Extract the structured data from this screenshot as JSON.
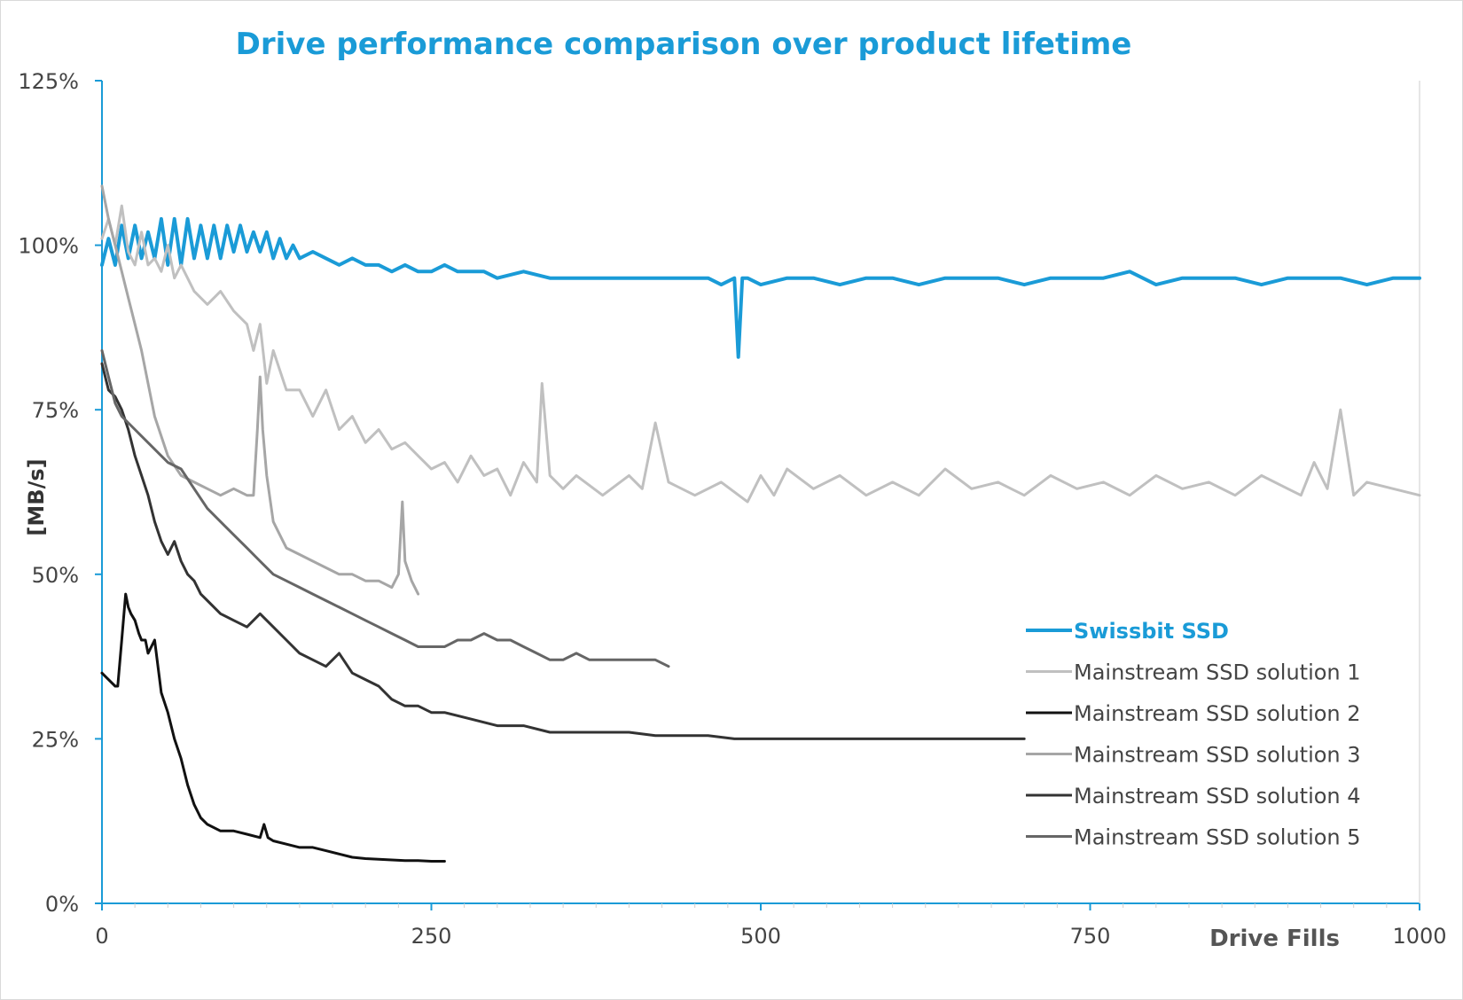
{
  "chart_data": {
    "type": "line",
    "title": "Drive performance comparison over product lifetime",
    "xlabel": "Drive Fills",
    "ylabel": "[MB/s]",
    "xlim": [
      0,
      1000
    ],
    "ylim": [
      0,
      125
    ],
    "x_ticks": [
      "0",
      "250",
      "500",
      "750",
      "1000"
    ],
    "x_tick_values": [
      0,
      250,
      500,
      750,
      1000
    ],
    "y_ticks": [
      "0%",
      "25%",
      "50%",
      "75%",
      "100%",
      "125%"
    ],
    "y_tick_values": [
      0,
      25,
      50,
      75,
      100,
      125
    ],
    "grid": false,
    "legend_position": "right",
    "series": [
      {
        "name": "Swissbit SSD",
        "color": "#1a9bd7",
        "x": [
          0,
          5,
          10,
          15,
          20,
          25,
          30,
          35,
          40,
          45,
          50,
          55,
          60,
          65,
          70,
          75,
          80,
          85,
          90,
          95,
          100,
          105,
          110,
          115,
          120,
          125,
          130,
          135,
          140,
          145,
          150,
          160,
          170,
          180,
          190,
          200,
          210,
          220,
          230,
          240,
          250,
          260,
          270,
          280,
          290,
          300,
          320,
          340,
          360,
          380,
          400,
          420,
          440,
          460,
          470,
          480,
          483,
          486,
          490,
          500,
          520,
          540,
          560,
          580,
          600,
          620,
          640,
          660,
          680,
          700,
          720,
          740,
          760,
          780,
          800,
          820,
          840,
          860,
          880,
          900,
          920,
          940,
          960,
          980,
          1000
        ],
        "values": [
          97,
          101,
          97,
          103,
          98,
          103,
          98,
          102,
          98,
          104,
          97,
          104,
          97,
          104,
          98,
          103,
          98,
          103,
          98,
          103,
          99,
          103,
          99,
          102,
          99,
          102,
          98,
          101,
          98,
          100,
          98,
          99,
          98,
          97,
          98,
          97,
          97,
          96,
          97,
          96,
          96,
          97,
          96,
          96,
          96,
          95,
          96,
          95,
          95,
          95,
          95,
          95,
          95,
          95,
          94,
          95,
          83,
          95,
          95,
          94,
          95,
          95,
          94,
          95,
          95,
          94,
          95,
          95,
          95,
          94,
          95,
          95,
          95,
          96,
          94,
          95,
          95,
          95,
          94,
          95,
          95,
          95,
          94,
          95,
          95
        ]
      },
      {
        "name": "Mainstream SSD solution 1",
        "color": "#c0c0c0",
        "x": [
          0,
          5,
          10,
          15,
          20,
          25,
          30,
          35,
          40,
          45,
          50,
          55,
          60,
          70,
          80,
          90,
          100,
          110,
          115,
          120,
          125,
          130,
          140,
          150,
          160,
          170,
          180,
          190,
          200,
          210,
          220,
          230,
          240,
          250,
          260,
          270,
          280,
          290,
          300,
          310,
          320,
          330,
          334,
          340,
          350,
          360,
          380,
          400,
          410,
          420,
          430,
          450,
          470,
          490,
          500,
          510,
          520,
          540,
          560,
          580,
          600,
          620,
          640,
          660,
          680,
          700,
          720,
          740,
          760,
          780,
          800,
          820,
          840,
          860,
          880,
          900,
          910,
          920,
          930,
          940,
          950,
          960,
          980,
          1000
        ],
        "values": [
          101,
          104,
          100,
          106,
          99,
          97,
          102,
          97,
          98,
          96,
          100,
          95,
          97,
          93,
          91,
          93,
          90,
          88,
          84,
          88,
          79,
          84,
          78,
          78,
          74,
          78,
          72,
          74,
          70,
          72,
          69,
          70,
          68,
          66,
          67,
          64,
          68,
          65,
          66,
          62,
          67,
          64,
          79,
          65,
          63,
          65,
          62,
          65,
          63,
          73,
          64,
          62,
          64,
          61,
          65,
          62,
          66,
          63,
          65,
          62,
          64,
          62,
          66,
          63,
          64,
          62,
          65,
          63,
          64,
          62,
          65,
          63,
          64,
          62,
          65,
          63,
          62,
          67,
          63,
          75,
          62,
          64,
          63,
          62
        ]
      },
      {
        "name": "Mainstream SSD solution 2",
        "color": "#111111",
        "x": [
          0,
          5,
          10,
          12,
          15,
          18,
          20,
          22,
          25,
          28,
          30,
          33,
          35,
          40,
          45,
          50,
          55,
          60,
          65,
          70,
          75,
          80,
          90,
          100,
          110,
          120,
          123,
          126,
          130,
          140,
          150,
          160,
          170,
          180,
          190,
          200,
          210,
          220,
          230,
          240,
          250,
          260
        ],
        "values": [
          35,
          34,
          33,
          33,
          40,
          47,
          45,
          44,
          43,
          41,
          40,
          40,
          38,
          40,
          32,
          29,
          25,
          22,
          18,
          15,
          13,
          12,
          11,
          11,
          10.5,
          10,
          12,
          10,
          9.5,
          9,
          8.5,
          8.5,
          8,
          7.5,
          7,
          6.8,
          6.7,
          6.6,
          6.5,
          6.5,
          6.4,
          6.4
        ]
      },
      {
        "name": "Mainstream SSD solution 3",
        "color": "#a6a6a6",
        "x": [
          0,
          5,
          10,
          15,
          20,
          25,
          30,
          35,
          40,
          50,
          60,
          70,
          80,
          90,
          100,
          110,
          115,
          118,
          120,
          122,
          125,
          130,
          135,
          140,
          150,
          160,
          170,
          180,
          190,
          200,
          210,
          220,
          225,
          228,
          230,
          235,
          240
        ],
        "values": [
          109,
          104,
          100,
          96,
          92,
          88,
          84,
          79,
          74,
          68,
          65,
          64,
          63,
          62,
          63,
          62,
          62,
          72,
          80,
          72,
          65,
          58,
          56,
          54,
          53,
          52,
          51,
          50,
          50,
          49,
          49,
          48,
          50,
          61,
          52,
          49,
          47
        ]
      },
      {
        "name": "Mainstream SSD solution 4",
        "color": "#333333",
        "x": [
          0,
          5,
          10,
          15,
          20,
          25,
          30,
          35,
          40,
          45,
          50,
          55,
          60,
          65,
          70,
          75,
          80,
          90,
          100,
          110,
          120,
          130,
          140,
          150,
          160,
          170,
          180,
          190,
          200,
          210,
          220,
          230,
          240,
          250,
          260,
          280,
          300,
          320,
          340,
          360,
          380,
          400,
          420,
          440,
          460,
          480,
          500,
          520,
          540,
          560,
          580,
          600,
          620,
          640,
          660,
          680,
          700
        ],
        "values": [
          82,
          78,
          77,
          75,
          72,
          68,
          65,
          62,
          58,
          55,
          53,
          55,
          52,
          50,
          49,
          47,
          46,
          44,
          43,
          42,
          44,
          42,
          40,
          38,
          37,
          36,
          38,
          35,
          34,
          33,
          31,
          30,
          30,
          29,
          29,
          28,
          27,
          27,
          26,
          26,
          26,
          26,
          25.5,
          25.5,
          25.5,
          25,
          25,
          25,
          25,
          25,
          25,
          25,
          25,
          25,
          25,
          25,
          25
        ]
      },
      {
        "name": "Mainstream SSD solution 5",
        "color": "#666666",
        "x": [
          0,
          5,
          10,
          15,
          20,
          25,
          30,
          35,
          40,
          45,
          50,
          60,
          70,
          80,
          90,
          100,
          110,
          120,
          130,
          140,
          150,
          160,
          170,
          180,
          190,
          200,
          210,
          220,
          230,
          240,
          250,
          260,
          270,
          280,
          290,
          300,
          310,
          320,
          330,
          340,
          350,
          360,
          370,
          380,
          390,
          400,
          410,
          420,
          430
        ],
        "values": [
          84,
          80,
          76,
          74,
          73,
          72,
          71,
          70,
          69,
          68,
          67,
          66,
          63,
          60,
          58,
          56,
          54,
          52,
          50,
          49,
          48,
          47,
          46,
          45,
          44,
          43,
          42,
          41,
          40,
          39,
          39,
          39,
          40,
          40,
          41,
          40,
          40,
          39,
          38,
          37,
          37,
          38,
          37,
          37,
          37,
          37,
          37,
          37,
          36
        ]
      }
    ]
  }
}
